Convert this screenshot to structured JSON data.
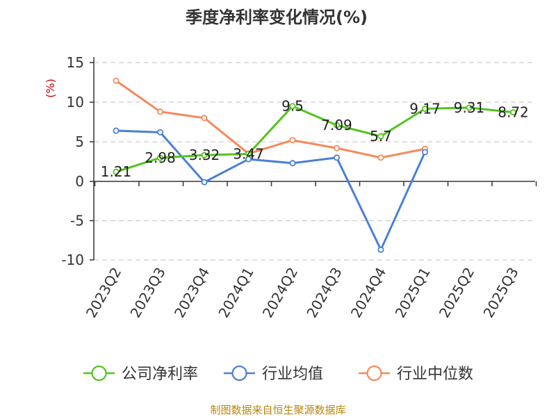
{
  "chart_data": {
    "type": "line",
    "title": "季度净利率变化情况(%)",
    "ylabel": "(%)",
    "xlabel": "",
    "categories": [
      "2023Q2",
      "2023Q3",
      "2023Q4",
      "2024Q1",
      "2024Q2",
      "2024Q3",
      "2024Q4",
      "2025Q1",
      "2025Q2",
      "2025Q3"
    ],
    "yticks": [
      15,
      10,
      5,
      0,
      -5,
      -10
    ],
    "ylim": [
      -10,
      15
    ],
    "grid": true,
    "legend_position": "bottom",
    "series": [
      {
        "name": "公司净利率",
        "color": "#52c41a",
        "show_labels": true,
        "values": [
          1.21,
          2.98,
          3.32,
          3.47,
          9.5,
          7.09,
          5.7,
          9.17,
          9.31,
          8.72
        ],
        "labels": [
          "1.21",
          "2.98",
          "3.32",
          "3.47",
          "9.5",
          "7.09",
          "5.7",
          "9.17",
          "9.31",
          "8.72"
        ]
      },
      {
        "name": "行业均值",
        "color": "#4a7fd6",
        "show_labels": false,
        "values": [
          6.4,
          6.2,
          -0.1,
          2.8,
          2.3,
          3.0,
          -8.7,
          3.7,
          null,
          null
        ]
      },
      {
        "name": "行业中位数",
        "color": "#f5895a",
        "show_labels": false,
        "values": [
          12.7,
          8.8,
          8.0,
          3.5,
          5.2,
          4.2,
          3.0,
          4.1,
          null,
          null
        ]
      }
    ]
  },
  "source": "制图数据来自恒生聚源数据库"
}
